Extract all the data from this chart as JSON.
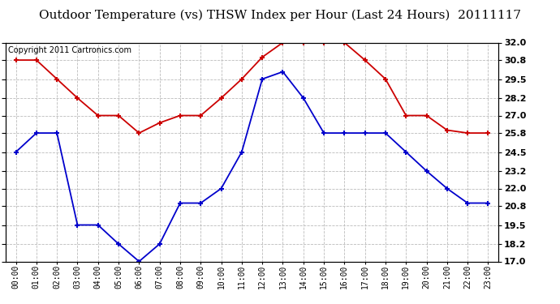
{
  "title": "Outdoor Temperature (vs) THSW Index per Hour (Last 24 Hours)  20111117",
  "copyright": "Copyright 2011 Cartronics.com",
  "hours": [
    "00:00",
    "01:00",
    "02:00",
    "03:00",
    "04:00",
    "05:00",
    "06:00",
    "07:00",
    "08:00",
    "09:00",
    "10:00",
    "11:00",
    "12:00",
    "13:00",
    "14:00",
    "15:00",
    "16:00",
    "17:00",
    "18:00",
    "19:00",
    "20:00",
    "21:00",
    "22:00",
    "23:00"
  ],
  "red_data": [
    30.8,
    30.8,
    29.5,
    28.2,
    27.0,
    27.0,
    25.8,
    26.5,
    27.0,
    27.0,
    28.2,
    29.5,
    31.0,
    32.0,
    32.0,
    32.0,
    32.0,
    30.8,
    29.5,
    27.0,
    27.0,
    26.0,
    25.8,
    25.8
  ],
  "blue_data": [
    24.5,
    25.8,
    25.8,
    19.5,
    19.5,
    18.2,
    17.0,
    18.2,
    21.0,
    21.0,
    22.0,
    24.5,
    29.5,
    30.0,
    28.2,
    25.8,
    25.8,
    25.8,
    25.8,
    24.5,
    23.2,
    22.0,
    21.0,
    21.0
  ],
  "red_color": "#cc0000",
  "blue_color": "#0000cc",
  "bg_color": "#ffffff",
  "grid_color": "#bbbbbb",
  "ymin": 17.0,
  "ymax": 32.0,
  "yticks": [
    17.0,
    18.2,
    19.5,
    20.8,
    22.0,
    23.2,
    24.5,
    25.8,
    27.0,
    28.2,
    29.5,
    30.8,
    32.0
  ],
  "title_fontsize": 11,
  "copyright_fontsize": 7
}
